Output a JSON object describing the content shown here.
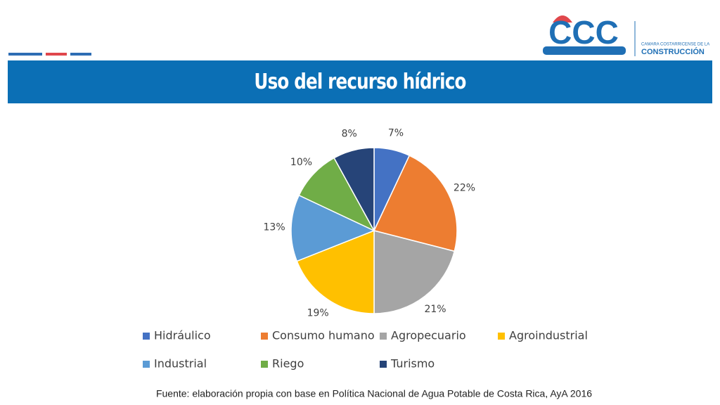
{
  "logo": {
    "mark": "CCC",
    "line1": "CAMARA COSTARRICENSE DE LA",
    "line2": "CONSTRUCCIÓN"
  },
  "chart_data": {
    "type": "pie",
    "title": "Uso del recurso hídrico",
    "categories": [
      "Hidráulico",
      "Consumo humano",
      "Agropecuario",
      "Agroindustrial",
      "Industrial",
      "Riego",
      "Turismo"
    ],
    "values": [
      7,
      22,
      21,
      19,
      13,
      10,
      8
    ],
    "value_labels": [
      "7%",
      "22%",
      "21%",
      "19%",
      "13%",
      "10%",
      "8%"
    ],
    "colors": [
      "#4472c4",
      "#ed7d31",
      "#a5a5a5",
      "#ffc000",
      "#5b9bd5",
      "#70ad47",
      "#264478"
    ],
    "legend": "bottom",
    "source": "Fuente: elaboración propia con base en Política Nacional de Agua Potable de Costa Rica, AyA 2016"
  }
}
